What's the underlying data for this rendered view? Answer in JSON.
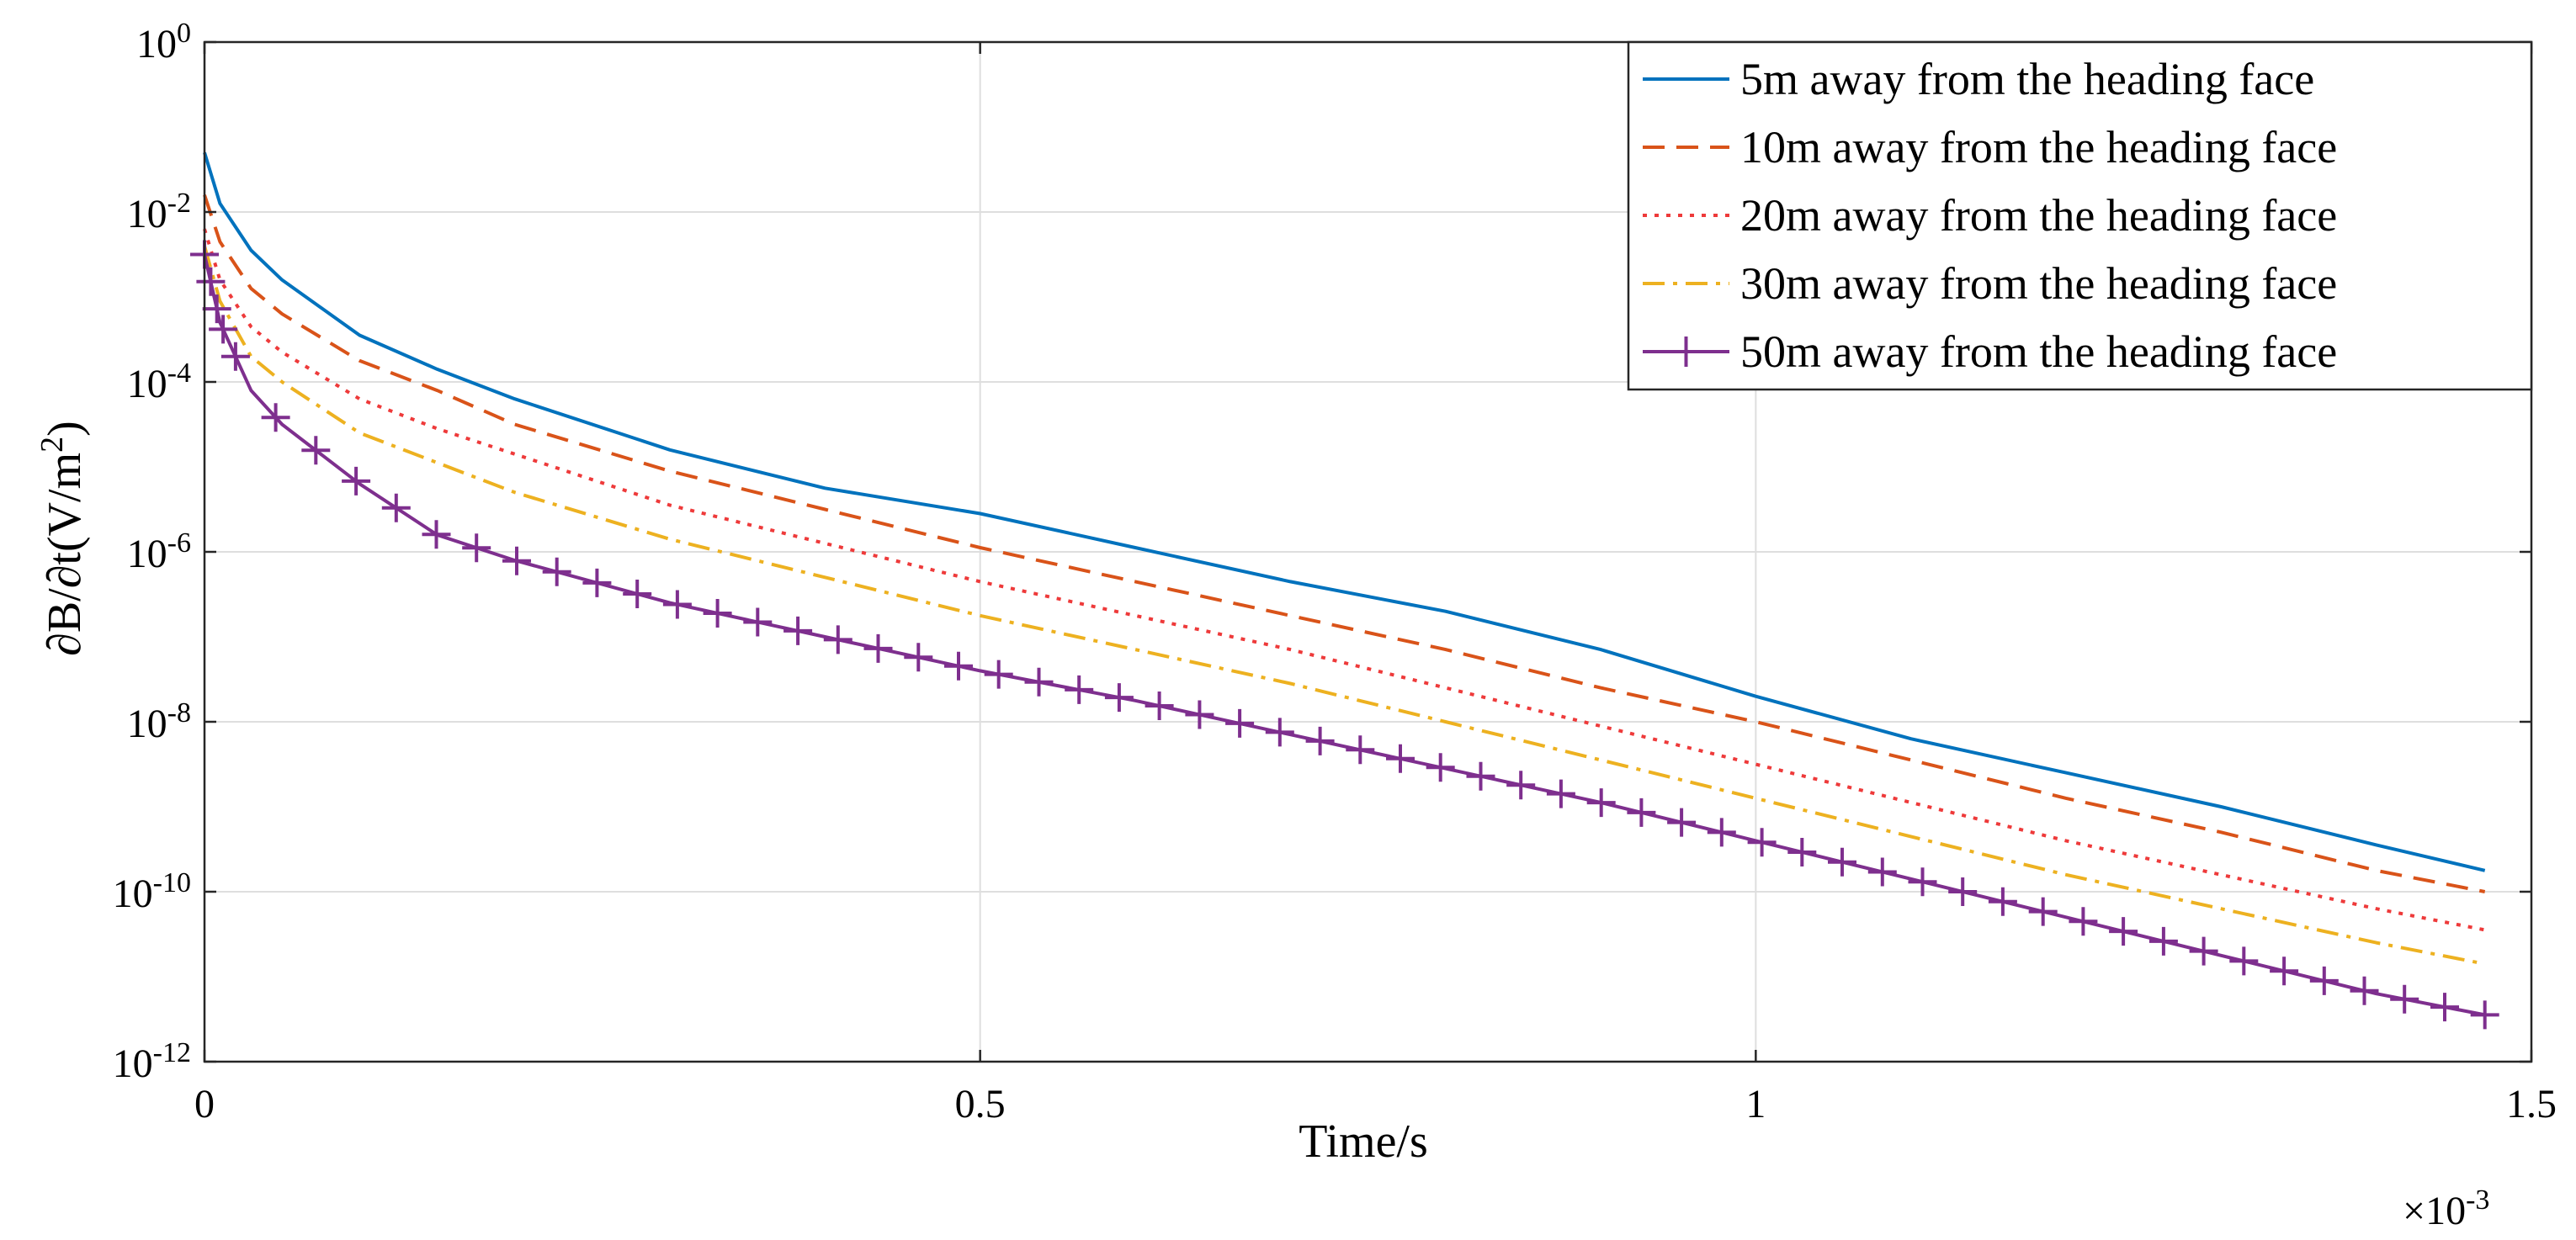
{
  "chart_data": {
    "type": "line",
    "title": "",
    "xlabel": "Time/s",
    "ylabel": "∂B/∂t(V/m²)",
    "ylabel_parts": {
      "prefix": "∂B/∂t(V/m",
      "sup": "2",
      "suffix": ")"
    },
    "x_scale_note": {
      "base": "×10",
      "exponent": "-3"
    },
    "xscale": "linear",
    "yscale": "log",
    "xlim": [
      0,
      1.5
    ],
    "ylim_exponent": [
      -12,
      0
    ],
    "grid": true,
    "legend_position": "top-right",
    "x_ticks": [
      {
        "value": 0,
        "label": "0"
      },
      {
        "value": 0.5,
        "label": "0.5"
      },
      {
        "value": 1,
        "label": "1"
      },
      {
        "value": 1.5,
        "label": "1.5"
      }
    ],
    "y_ticks": [
      {
        "exponent": 0,
        "label": "0"
      },
      {
        "exponent": -2,
        "label": "-2"
      },
      {
        "exponent": -4,
        "label": "-4"
      },
      {
        "exponent": -6,
        "label": "-6"
      },
      {
        "exponent": -8,
        "label": "-8"
      },
      {
        "exponent": -10,
        "label": "-10"
      },
      {
        "exponent": -12,
        "label": "-12"
      }
    ],
    "y_tick_base": "10",
    "series": [
      {
        "name": "5m away from the heading face",
        "color": "#0072BD",
        "style": "solid",
        "marker": "none",
        "x": [
          0,
          0.01,
          0.03,
          0.05,
          0.1,
          0.15,
          0.2,
          0.3,
          0.4,
          0.5,
          0.6,
          0.7,
          0.8,
          0.9,
          1.0,
          1.1,
          1.2,
          1.3,
          1.4,
          1.47
        ],
        "log10_y": [
          -1.3,
          -1.9,
          -2.45,
          -2.8,
          -3.45,
          -3.85,
          -4.2,
          -4.8,
          -5.25,
          -5.55,
          -5.95,
          -6.35,
          -6.7,
          -7.15,
          -7.7,
          -8.2,
          -8.6,
          -9.0,
          -9.45,
          -9.75
        ]
      },
      {
        "name": "10m away from the heading face",
        "color": "#D95319",
        "style": "dashed",
        "marker": "none",
        "x": [
          0,
          0.01,
          0.03,
          0.05,
          0.1,
          0.15,
          0.2,
          0.3,
          0.4,
          0.5,
          0.6,
          0.7,
          0.8,
          0.9,
          1.0,
          1.1,
          1.2,
          1.3,
          1.4,
          1.47
        ],
        "log10_y": [
          -1.8,
          -2.35,
          -2.9,
          -3.2,
          -3.75,
          -4.1,
          -4.5,
          -5.05,
          -5.5,
          -5.95,
          -6.35,
          -6.75,
          -7.15,
          -7.6,
          -8.0,
          -8.45,
          -8.9,
          -9.3,
          -9.75,
          -10.0
        ]
      },
      {
        "name": "20m away from the heading face",
        "color": "#EE3A3A",
        "style": "dotted",
        "marker": "none",
        "x": [
          0,
          0.01,
          0.03,
          0.05,
          0.1,
          0.15,
          0.2,
          0.3,
          0.4,
          0.5,
          0.6,
          0.7,
          0.8,
          0.9,
          1.0,
          1.1,
          1.2,
          1.3,
          1.4,
          1.47
        ],
        "log10_y": [
          -2.2,
          -2.8,
          -3.35,
          -3.65,
          -4.2,
          -4.55,
          -4.85,
          -5.45,
          -5.9,
          -6.35,
          -6.75,
          -7.15,
          -7.6,
          -8.05,
          -8.5,
          -8.95,
          -9.4,
          -9.8,
          -10.2,
          -10.45
        ]
      },
      {
        "name": "30m away from the heading face",
        "color": "#EDB120",
        "style": "dashdot",
        "marker": "none",
        "x": [
          0,
          0.01,
          0.03,
          0.05,
          0.1,
          0.15,
          0.2,
          0.3,
          0.4,
          0.5,
          0.6,
          0.7,
          0.8,
          0.9,
          1.0,
          1.1,
          1.2,
          1.3,
          1.4,
          1.47
        ],
        "log10_y": [
          -2.4,
          -3.05,
          -3.7,
          -4.0,
          -4.6,
          -4.95,
          -5.3,
          -5.85,
          -6.3,
          -6.75,
          -7.15,
          -7.55,
          -8.0,
          -8.45,
          -8.9,
          -9.35,
          -9.8,
          -10.2,
          -10.6,
          -10.85
        ]
      },
      {
        "name": "50m away from the heading face",
        "color": "#7E2F8E",
        "style": "solid",
        "marker": "plus",
        "x": [
          0,
          0.01,
          0.03,
          0.05,
          0.1,
          0.15,
          0.2,
          0.3,
          0.4,
          0.5,
          0.6,
          0.7,
          0.8,
          0.9,
          1.0,
          1.1,
          1.2,
          1.3,
          1.4,
          1.47
        ],
        "log10_y": [
          -2.5,
          -3.3,
          -4.1,
          -4.5,
          -5.2,
          -5.8,
          -6.1,
          -6.6,
          -7.0,
          -7.4,
          -7.75,
          -8.15,
          -8.55,
          -8.95,
          -9.4,
          -9.85,
          -10.3,
          -10.75,
          -11.2,
          -11.45
        ]
      }
    ]
  }
}
